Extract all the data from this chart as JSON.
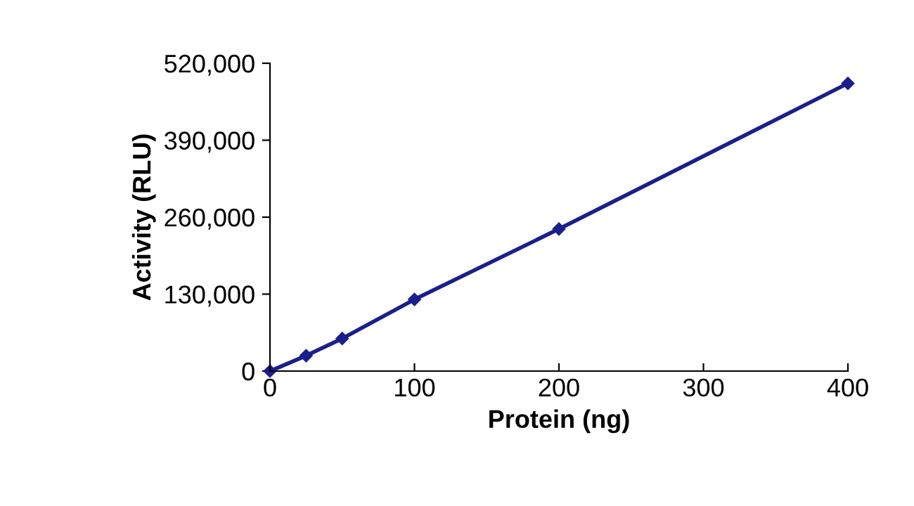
{
  "chart_data": {
    "type": "line",
    "xlabel": "Protein (ng)",
    "ylabel": "Activity (RLU)",
    "x": [
      0,
      25,
      50,
      100,
      200,
      400
    ],
    "series": [
      {
        "color": "#1a1f8c",
        "values": [
          0,
          26000,
          55000,
          121000,
          240000,
          486000
        ]
      }
    ],
    "xlim": [
      0,
      400
    ],
    "xticks": [
      0,
      100,
      200,
      300,
      400
    ],
    "ylim": [
      0,
      520000
    ],
    "yticks": [
      {
        "value": 0,
        "label": "0"
      },
      {
        "value": 130000,
        "label": "130,000"
      },
      {
        "value": 260000,
        "label": "260,000"
      },
      {
        "value": 390000,
        "label": "390,000"
      },
      {
        "value": 520000,
        "label": "520,000"
      }
    ],
    "grid": false,
    "marker": "diamond",
    "line_style": "solid",
    "legend": false
  }
}
